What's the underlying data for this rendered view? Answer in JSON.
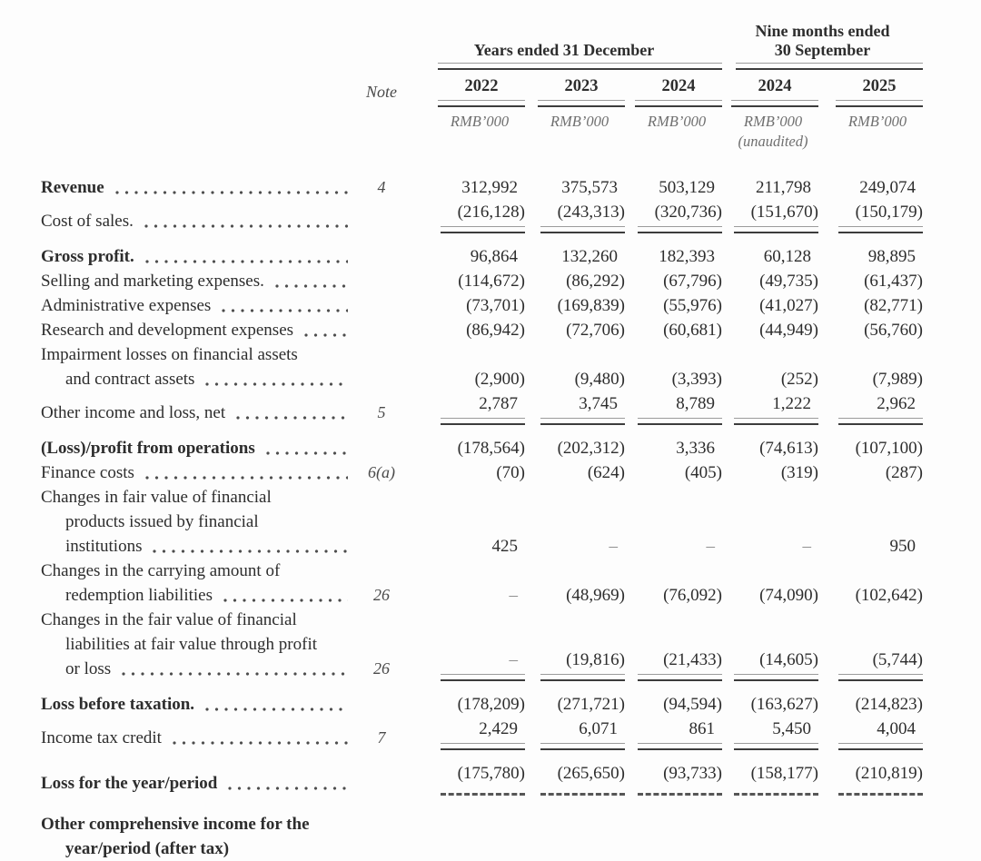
{
  "header": {
    "group1_title": "Years ended 31 December",
    "group2_title_line1": "Nine months ended",
    "group2_title_line2": "30 September",
    "note_label": "Note",
    "years": [
      "2022",
      "2023",
      "2024",
      "2024",
      "2025"
    ],
    "unit": "RMB’000",
    "unaudited": "(unaudited)"
  },
  "table": {
    "rows": [
      {
        "gap": 0,
        "note": "4",
        "rule": null,
        "label_lines": [
          {
            "text": "Revenue",
            "bold": true,
            "leader": true
          }
        ],
        "values": [
          "312,992",
          "375,573",
          "503,129",
          "211,798",
          "249,074"
        ]
      },
      {
        "gap": 0,
        "note": null,
        "rule": "solid",
        "label_lines": [
          {
            "text": "Cost of sales.",
            "leader": true
          }
        ],
        "values": [
          "(216,128)",
          "(243,313)",
          "(320,736)",
          "(151,670)",
          "(150,179)"
        ]
      },
      {
        "gap": 12,
        "note": null,
        "rule": null,
        "label_lines": [
          {
            "text": "Gross profit.",
            "bold": true,
            "leader": true
          }
        ],
        "values": [
          "96,864",
          "132,260",
          "182,393",
          "60,128",
          "98,895"
        ]
      },
      {
        "gap": 0,
        "note": null,
        "rule": null,
        "label_lines": [
          {
            "text": "Selling and marketing expenses.",
            "leader": true
          }
        ],
        "values": [
          "(114,672)",
          "(86,292)",
          "(67,796)",
          "(49,735)",
          "(61,437)"
        ]
      },
      {
        "gap": 0,
        "note": null,
        "rule": null,
        "label_lines": [
          {
            "text": "Administrative expenses",
            "leader": true
          }
        ],
        "values": [
          "(73,701)",
          "(169,839)",
          "(55,976)",
          "(41,027)",
          "(82,771)"
        ]
      },
      {
        "gap": 0,
        "note": null,
        "rule": null,
        "label_lines": [
          {
            "text": "Research and development expenses",
            "leader": true
          }
        ],
        "values": [
          "(86,942)",
          "(72,706)",
          "(60,681)",
          "(44,949)",
          "(56,760)"
        ]
      },
      {
        "gap": 0,
        "note": null,
        "rule": null,
        "label_lines": [
          {
            "text": "Impairment losses on financial assets"
          },
          {
            "text": "and contract assets",
            "indent": true,
            "leader": true
          }
        ],
        "values": [
          "(2,900)",
          "(9,480)",
          "(3,393)",
          "(252)",
          "(7,989)"
        ]
      },
      {
        "gap": 0,
        "note": "5",
        "rule": "solid",
        "label_lines": [
          {
            "text": "Other income and loss, net",
            "leader": true
          }
        ],
        "values": [
          "2,787",
          "3,745",
          "8,789",
          "1,222",
          "2,962"
        ]
      },
      {
        "gap": 12,
        "note": null,
        "rule": null,
        "label_lines": [
          {
            "text": "(Loss)/profit from operations",
            "bold": true,
            "leader": true
          }
        ],
        "values": [
          "(178,564)",
          "(202,312)",
          "3,336",
          "(74,613)",
          "(107,100)"
        ]
      },
      {
        "gap": 0,
        "note": "6(a)",
        "rule": null,
        "label_lines": [
          {
            "text": "Finance costs",
            "leader": true
          }
        ],
        "values": [
          "(70)",
          "(624)",
          "(405)",
          "(319)",
          "(287)"
        ]
      },
      {
        "gap": 0,
        "note": null,
        "rule": null,
        "label_lines": [
          {
            "text": "Changes in fair value of financial"
          },
          {
            "text": "products issued by financial",
            "indent": true
          },
          {
            "text": "institutions",
            "indent": true,
            "leader": true
          }
        ],
        "values": [
          "425",
          "–",
          "–",
          "–",
          "950"
        ]
      },
      {
        "gap": 0,
        "note": "26",
        "rule": null,
        "label_lines": [
          {
            "text": "Changes in the carrying amount of"
          },
          {
            "text": "redemption liabilities",
            "indent": true,
            "leader": true
          }
        ],
        "values": [
          "–",
          "(48,969)",
          "(76,092)",
          "(74,090)",
          "(102,642)"
        ]
      },
      {
        "gap": 0,
        "note": "26",
        "rule": "solid",
        "label_lines": [
          {
            "text": "Changes in the fair value of financial"
          },
          {
            "text": "liabilities at fair value through profit",
            "indent": true
          },
          {
            "text": "or loss",
            "indent": true,
            "leader": true
          }
        ],
        "values": [
          "–",
          "(19,816)",
          "(21,433)",
          "(14,605)",
          "(5,744)"
        ]
      },
      {
        "gap": 12,
        "note": null,
        "rule": null,
        "label_lines": [
          {
            "text": "Loss before taxation.",
            "bold": true,
            "leader": true
          }
        ],
        "values": [
          "(178,209)",
          "(271,721)",
          "(94,594)",
          "(163,627)",
          "(214,823)"
        ]
      },
      {
        "gap": 0,
        "note": "7",
        "rule": "solid",
        "label_lines": [
          {
            "text": "Income tax credit",
            "leader": true
          }
        ],
        "values": [
          "2,429",
          "6,071",
          "861",
          "5,450",
          "4,004"
        ]
      },
      {
        "gap": 12,
        "note": null,
        "rule": "dashed",
        "label_lines": [
          {
            "text": "Loss for the year/period",
            "bold": true,
            "leader": true
          }
        ],
        "values": [
          "(175,780)",
          "(265,650)",
          "(93,733)",
          "(158,177)",
          "(210,819)"
        ]
      },
      {
        "gap": 18,
        "note": null,
        "rule": null,
        "label_lines": [
          {
            "text": "Other comprehensive income for the",
            "bold": true
          },
          {
            "text": "year/period (after tax)",
            "bold": true,
            "indent": true
          }
        ],
        "values": [
          null,
          null,
          null,
          null,
          null
        ]
      }
    ]
  }
}
